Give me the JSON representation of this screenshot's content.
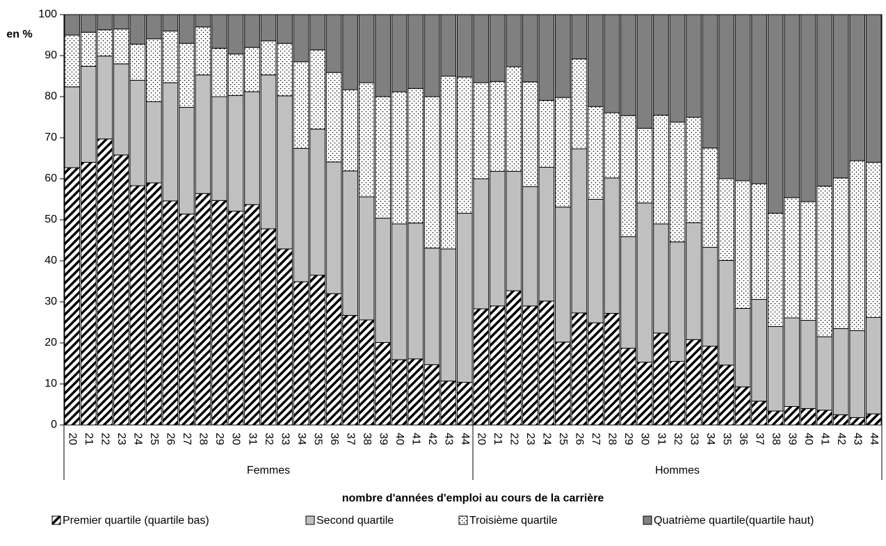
{
  "chart_data": {
    "type": "stacked-bar",
    "y_label": "en %",
    "x_label": "nombre d'années d'emploi au cours de la carrière",
    "ylim": [
      0,
      100
    ],
    "yticks": [
      0,
      10,
      20,
      30,
      40,
      50,
      60,
      70,
      80,
      90,
      100
    ],
    "groups": [
      "Femmes",
      "Hommes"
    ],
    "categories": [
      [
        "20",
        "21",
        "22",
        "23",
        "24",
        "25",
        "26",
        "27",
        "28",
        "29",
        "30",
        "31",
        "32",
        "33",
        "34",
        "35",
        "36",
        "37",
        "38",
        "39",
        "40",
        "41",
        "42",
        "43",
        "44"
      ],
      [
        "20",
        "21",
        "22",
        "23",
        "24",
        "25",
        "26",
        "27",
        "28",
        "29",
        "30",
        "31",
        "32",
        "33",
        "34",
        "35",
        "36",
        "37",
        "38",
        "39",
        "40",
        "41",
        "42",
        "43",
        "44"
      ]
    ],
    "series": [
      {
        "name": "Premier quartile (quartile bas)",
        "color": "#000000",
        "pattern": "hatch",
        "values": [
          [
            62.7,
            64,
            69.7,
            65.8,
            58.3,
            59,
            54.6,
            51.4,
            56.4,
            54.7,
            52.1,
            53.7,
            47.8,
            42.9,
            34.9,
            36.5,
            32,
            26.7,
            25.6,
            20.1,
            15.9,
            16.1,
            14.7,
            10.7,
            10.4
          ],
          [
            28.3,
            29,
            32.7,
            29,
            30.2,
            20.2,
            27.3,
            24.9,
            27.2,
            18.7,
            15.3,
            22.4,
            15.5,
            20.8,
            19.2,
            14.6,
            9.3,
            5.8,
            3.4,
            4.5,
            4,
            3.6,
            2.5,
            1.8,
            2.7
          ]
        ]
      },
      {
        "name": "Second quartile",
        "color": "#c0c0c0",
        "pattern": "solid",
        "values": [
          [
            19.7,
            23.4,
            20.2,
            22.2,
            25.7,
            19.8,
            28.8,
            26,
            28.9,
            25.3,
            28.2,
            27.5,
            37.5,
            37.3,
            32.5,
            35.6,
            32.1,
            35.2,
            30,
            30.3,
            33.1,
            33.1,
            28.4,
            32.2,
            41.2
          ],
          [
            31.7,
            32.8,
            29.1,
            29.1,
            32.6,
            32.9,
            40,
            30.1,
            33,
            27.2,
            38.8,
            26.6,
            29.1,
            28.5,
            24.1,
            25.5,
            19.1,
            24.8,
            20.6,
            21.6,
            21.5,
            17.9,
            21,
            21.2,
            23.5
          ]
        ]
      },
      {
        "name": "Troisième quartile",
        "color": "#ffffff",
        "pattern": "dots",
        "values": [
          [
            12.6,
            8.3,
            6.4,
            8.5,
            8.8,
            15.3,
            12.6,
            15.6,
            11.7,
            11.8,
            10.1,
            10.8,
            8.3,
            12.8,
            21.1,
            19.3,
            21.8,
            19.8,
            27.8,
            29.6,
            32.2,
            32.8,
            36.9,
            42.1,
            33.2
          ],
          [
            23.4,
            21.9,
            25.5,
            25.5,
            16.3,
            26.7,
            21.9,
            22.6,
            15.9,
            29.5,
            18.2,
            26.5,
            29.2,
            25.7,
            24.2,
            19.9,
            31.1,
            28.2,
            27.6,
            29.3,
            28.9,
            36.7,
            36.7,
            41.4,
            37.8
          ]
        ]
      },
      {
        "name": "Quatrième quartile(quartile haut)",
        "color": "#808080",
        "pattern": "solid",
        "values": [
          [
            5,
            4.3,
            3.7,
            3.5,
            7.2,
            5.9,
            4,
            7,
            3,
            8.2,
            9.6,
            8,
            6.4,
            7,
            11.5,
            8.6,
            14.1,
            18.3,
            16.6,
            20,
            18.8,
            18,
            20,
            15,
            15.2
          ],
          [
            16.6,
            16.3,
            12.7,
            16.4,
            20.9,
            20.2,
            10.8,
            22.4,
            23.9,
            24.6,
            27.7,
            24.5,
            26.2,
            25,
            32.5,
            40,
            40.5,
            41.2,
            48.4,
            44.6,
            45.6,
            41.8,
            39.8,
            35.6,
            36
          ]
        ]
      }
    ]
  }
}
